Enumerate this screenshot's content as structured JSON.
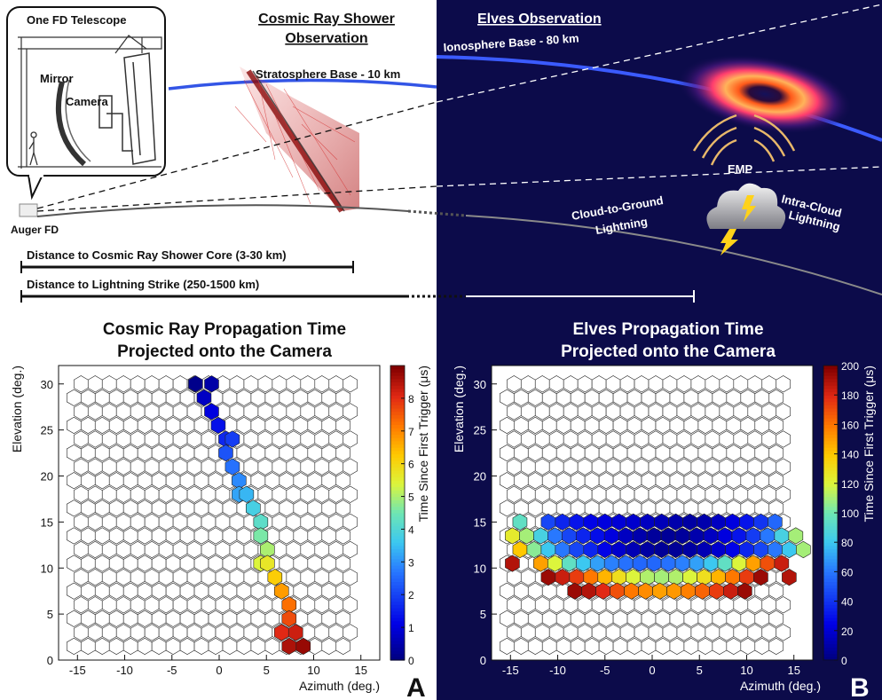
{
  "panel_labels": {
    "left": "A",
    "right": "B"
  },
  "colors": {
    "night": "#0c0b4a",
    "ionosphere": "#3b5bff",
    "stratosphere": "#3355e6",
    "ground_left": "#555555",
    "ground_right": "#8a8a8a",
    "emp": "#e8b86a",
    "shower": "#cc1b1b"
  },
  "illustration": {
    "telescope_title": "One FD Telescope",
    "mirror_label": "Mirror",
    "camera_label": "Camera",
    "auger_label": "Auger FD",
    "cr_title_line1": "Cosmic Ray Shower",
    "cr_title_line2": "Observation",
    "elves_title": "Elves Observation",
    "stratosphere_label": "Stratosphere Base - 10 km",
    "ionosphere_label": "Ionosphere Base - 80 km",
    "emp_label": "EMP",
    "cg_line1": "Cloud-to-Ground",
    "cg_line2": "Lightning",
    "ic_line1": "Intra-Cloud",
    "ic_line2": "Lightning",
    "dist_cr": "Distance to Cosmic Ray Shower Core (3-30 km)",
    "dist_lightning": "Distance to Lightning Strike (250-1500 km)"
  },
  "chart_data": [
    {
      "type": "heatmap",
      "title_line1": "Cosmic Ray Propagation Time",
      "title_line2": "Projected onto the Camera",
      "xlabel": "Azimuth (deg.)",
      "ylabel": "Elevation (deg.)",
      "zlabel": "Time Since First Trigger (μs)",
      "xlim": [
        -17,
        17
      ],
      "ylim": [
        0,
        32
      ],
      "xticks": [
        -15,
        -10,
        -5,
        0,
        5,
        10,
        15
      ],
      "yticks": [
        0,
        5,
        10,
        15,
        20,
        25,
        30
      ],
      "zlim": [
        0,
        9
      ],
      "zticks": [
        0,
        1,
        2,
        3,
        4,
        5,
        6,
        7,
        8
      ],
      "grid": {
        "rows": 20,
        "cols": 20,
        "az_min": -15,
        "az_step": 1.5,
        "el_min": 1.5,
        "el_step": 1.5
      },
      "cells": [
        {
          "az": -2.5,
          "el": 30.0,
          "t": 0.1
        },
        {
          "az": -0.8,
          "el": 30.0,
          "t": 0.4
        },
        {
          "az": -1.6,
          "el": 28.5,
          "t": 0.7
        },
        {
          "az": -0.8,
          "el": 27.0,
          "t": 1.0
        },
        {
          "az": -0.1,
          "el": 25.5,
          "t": 1.3
        },
        {
          "az": 0.7,
          "el": 24.0,
          "t": 1.6
        },
        {
          "az": 1.4,
          "el": 24.0,
          "t": 1.9
        },
        {
          "az": 0.7,
          "el": 22.5,
          "t": 2.2
        },
        {
          "az": 1.4,
          "el": 21.0,
          "t": 2.6
        },
        {
          "az": 2.1,
          "el": 19.5,
          "t": 2.9
        },
        {
          "az": 2.1,
          "el": 18.0,
          "t": 3.2
        },
        {
          "az": 2.9,
          "el": 18.0,
          "t": 3.4
        },
        {
          "az": 3.6,
          "el": 16.5,
          "t": 3.8
        },
        {
          "az": 4.4,
          "el": 15.0,
          "t": 4.2
        },
        {
          "az": 4.4,
          "el": 13.5,
          "t": 4.6
        },
        {
          "az": 5.1,
          "el": 12.0,
          "t": 5.0
        },
        {
          "az": 4.4,
          "el": 10.5,
          "t": 5.4
        },
        {
          "az": 5.1,
          "el": 10.5,
          "t": 5.7
        },
        {
          "az": 5.9,
          "el": 9.0,
          "t": 6.2
        },
        {
          "az": 6.6,
          "el": 7.5,
          "t": 6.8
        },
        {
          "az": 7.4,
          "el": 6.0,
          "t": 7.3
        },
        {
          "az": 7.4,
          "el": 4.5,
          "t": 7.7
        },
        {
          "az": 6.6,
          "el": 3.0,
          "t": 8.1
        },
        {
          "az": 8.1,
          "el": 3.0,
          "t": 8.3
        },
        {
          "az": 7.4,
          "el": 1.5,
          "t": 8.6
        },
        {
          "az": 8.9,
          "el": 1.5,
          "t": 8.8
        }
      ]
    },
    {
      "type": "heatmap",
      "title_line1": "Elves Propagation Time",
      "title_line2": "Projected onto the Camera",
      "xlabel": "Azimuth (deg.)",
      "ylabel": "Elevation (deg.)",
      "zlabel": "Time Since First Trigger (μs)",
      "xlim": [
        -17,
        17
      ],
      "ylim": [
        0,
        32
      ],
      "xticks": [
        -15,
        -10,
        -5,
        0,
        5,
        10,
        15
      ],
      "yticks": [
        0,
        5,
        10,
        15,
        20,
        25,
        30
      ],
      "zlim": [
        0,
        200
      ],
      "zticks": [
        0,
        20,
        40,
        60,
        80,
        100,
        120,
        140,
        160,
        180,
        200
      ],
      "grid": {
        "rows": 20,
        "cols": 20,
        "az_min": -15,
        "az_step": 1.5,
        "el_min": 1.5,
        "el_step": 1.5
      },
      "rows_by_elevation": [
        {
          "el": 15.0,
          "az_start": -14.0,
          "az_step": 1.5,
          "times": [
            95,
            null,
            45,
            35,
            30,
            25,
            22,
            20,
            18,
            15,
            13,
            10,
            8,
            10,
            15,
            22,
            30,
            40,
            55
          ]
        },
        {
          "el": 13.5,
          "az_start": -14.8,
          "az_step": 1.5,
          "times": [
            125,
            110,
            85,
            60,
            45,
            35,
            28,
            22,
            15,
            10,
            6,
            5,
            6,
            10,
            15,
            22,
            30,
            42,
            60,
            85,
            110
          ]
        },
        {
          "el": 12.0,
          "az_start": -14.0,
          "az_step": 1.5,
          "times": [
            140,
            105,
            80,
            60,
            45,
            35,
            25,
            18,
            12,
            8,
            5,
            5,
            8,
            12,
            18,
            25,
            35,
            45,
            60,
            80,
            110
          ]
        },
        {
          "el": 10.5,
          "az_start": -14.8,
          "az_step": 1.5,
          "times": [
            190,
            null,
            150,
            120,
            95,
            80,
            70,
            62,
            58,
            55,
            55,
            58,
            62,
            70,
            80,
            95,
            120,
            150,
            170,
            185
          ]
        },
        {
          "el": 9.0,
          "az_start": -11.0,
          "az_step": 1.5,
          "times": [
            195,
            185,
            175,
            160,
            145,
            130,
            120,
            112,
            110,
            112,
            120,
            130,
            145,
            160,
            175,
            195,
            null,
            190
          ]
        },
        {
          "el": 7.5,
          "az_start": -8.2,
          "az_step": 1.5,
          "times": [
            195,
            190,
            180,
            170,
            160,
            155,
            150,
            152,
            158,
            165,
            175,
            185,
            195
          ]
        }
      ]
    }
  ]
}
